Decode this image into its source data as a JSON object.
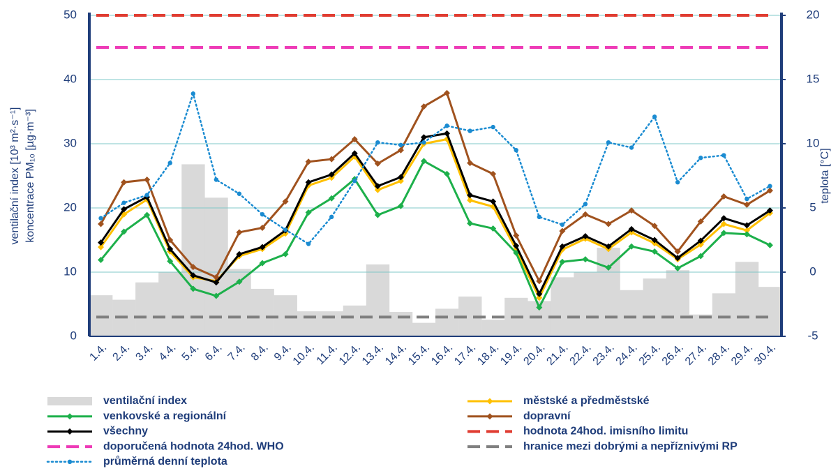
{
  "chart_data": {
    "type": "combo",
    "y_label_lines": [
      "ventilační index [10³ m²·s⁻¹]",
      "koncentrace PM₁₀ [µg·m⁻³]"
    ],
    "y2_label": "teplota [°C]",
    "categories": [
      "1.4.",
      "2.4.",
      "3.4.",
      "4.4.",
      "5.4.",
      "6.4.",
      "7.4.",
      "8.4.",
      "9.4.",
      "10.4.",
      "11.4.",
      "12.4.",
      "13.4.",
      "14.4.",
      "15.4.",
      "16.4.",
      "17.4.",
      "18.4.",
      "19.4.",
      "20.4.",
      "21.4.",
      "22.4.",
      "23.4.",
      "24.4.",
      "25.4.",
      "26.4.",
      "27.4.",
      "28.4.",
      "29.4.",
      "30.4."
    ],
    "ylim": [
      0,
      50
    ],
    "yticks": [
      0,
      10,
      20,
      30,
      40,
      50
    ],
    "y2lim": [
      -5,
      20
    ],
    "y2ticks": [
      -5,
      0,
      5,
      10,
      15,
      20
    ],
    "grid": true,
    "grid_color": "#7fc8c8",
    "series": [
      {
        "name": "ventilační index",
        "style": "bar",
        "color": "#d9d9d9",
        "values": [
          6.4,
          5.7,
          8.4,
          10,
          26.8,
          21.6,
          10.5,
          7.4,
          6.4,
          3.9,
          3.9,
          4.8,
          11.2,
          3.8,
          2.1,
          4.3,
          6.2,
          2.6,
          6.0,
          5.5,
          9.2,
          10,
          13.8,
          7.2,
          9.0,
          10.3,
          3.4,
          6.7,
          11.6,
          7.7
        ]
      },
      {
        "name": "městské a předměstské",
        "style": "line",
        "color": "#ffc000",
        "values": [
          13.9,
          19.0,
          21.3,
          13.2,
          9.2,
          8.6,
          12.5,
          13.6,
          16.0,
          23.5,
          24.7,
          28.0,
          22.8,
          24.2,
          30.0,
          30.7,
          21.2,
          20.2,
          13.5,
          6.0,
          13.5,
          15.2,
          13.6,
          16.2,
          14.5,
          12.0,
          14.3,
          17.5,
          16.5,
          19.2
        ]
      },
      {
        "name": "venkovské a regionální",
        "style": "line",
        "color": "#1db04b",
        "values": [
          11.9,
          16.3,
          18.9,
          11.7,
          7.4,
          6.3,
          8.5,
          11.4,
          12.8,
          19.3,
          21.5,
          24.5,
          18.9,
          20.3,
          27.3,
          25.3,
          17.6,
          16.8,
          13.0,
          4.5,
          11.6,
          12.0,
          10.7,
          14.0,
          13.2,
          10.6,
          12.5,
          16.1,
          15.9,
          14.2
        ]
      },
      {
        "name": "dopravní",
        "style": "line",
        "color": "#a0521e",
        "values": [
          17.5,
          24.0,
          24.4,
          15.0,
          10.8,
          9.2,
          16.2,
          16.9,
          21.0,
          27.2,
          27.6,
          30.7,
          26.9,
          29.0,
          35.8,
          37.9,
          27.0,
          25.3,
          15.7,
          8.6,
          16.4,
          19.0,
          17.5,
          19.6,
          17.2,
          13.2,
          17.9,
          21.8,
          20.5,
          22.7
        ]
      },
      {
        "name": "všechny",
        "style": "line",
        "color": "#000000",
        "values": [
          14.6,
          19.8,
          21.7,
          13.6,
          9.5,
          8.4,
          12.8,
          13.9,
          16.5,
          24.0,
          25.2,
          28.5,
          23.4,
          24.8,
          31.0,
          31.6,
          22.0,
          21.0,
          14.1,
          6.6,
          14.0,
          15.6,
          14.0,
          16.7,
          15.0,
          12.2,
          14.9,
          18.4,
          17.3,
          19.6
        ]
      },
      {
        "name": "hodnota 24hod. imisního limitu",
        "style": "dashed",
        "color": "#e03c31",
        "value": 50
      },
      {
        "name": "doporučená hodnota 24hod. WHO",
        "style": "dashed",
        "color": "#ee3bb7",
        "value": 45
      },
      {
        "name": "hranice mezi dobrými a nepříznivými RP",
        "style": "dashed",
        "color": "#808080",
        "value": 3
      },
      {
        "name": "průměrná denní teplota",
        "style": "dotted",
        "color": "#1a8bd1",
        "axis": "y2",
        "values": [
          4.2,
          5.4,
          6.0,
          8.5,
          13.9,
          7.2,
          6.1,
          4.5,
          3.3,
          2.2,
          4.3,
          7.1,
          10.1,
          9.9,
          10.1,
          11.4,
          11.0,
          11.3,
          9.5,
          4.3,
          3.7,
          5.3,
          10.1,
          9.7,
          12.1,
          7.0,
          8.9,
          9.1,
          5.7,
          6.7
        ]
      }
    ]
  }
}
